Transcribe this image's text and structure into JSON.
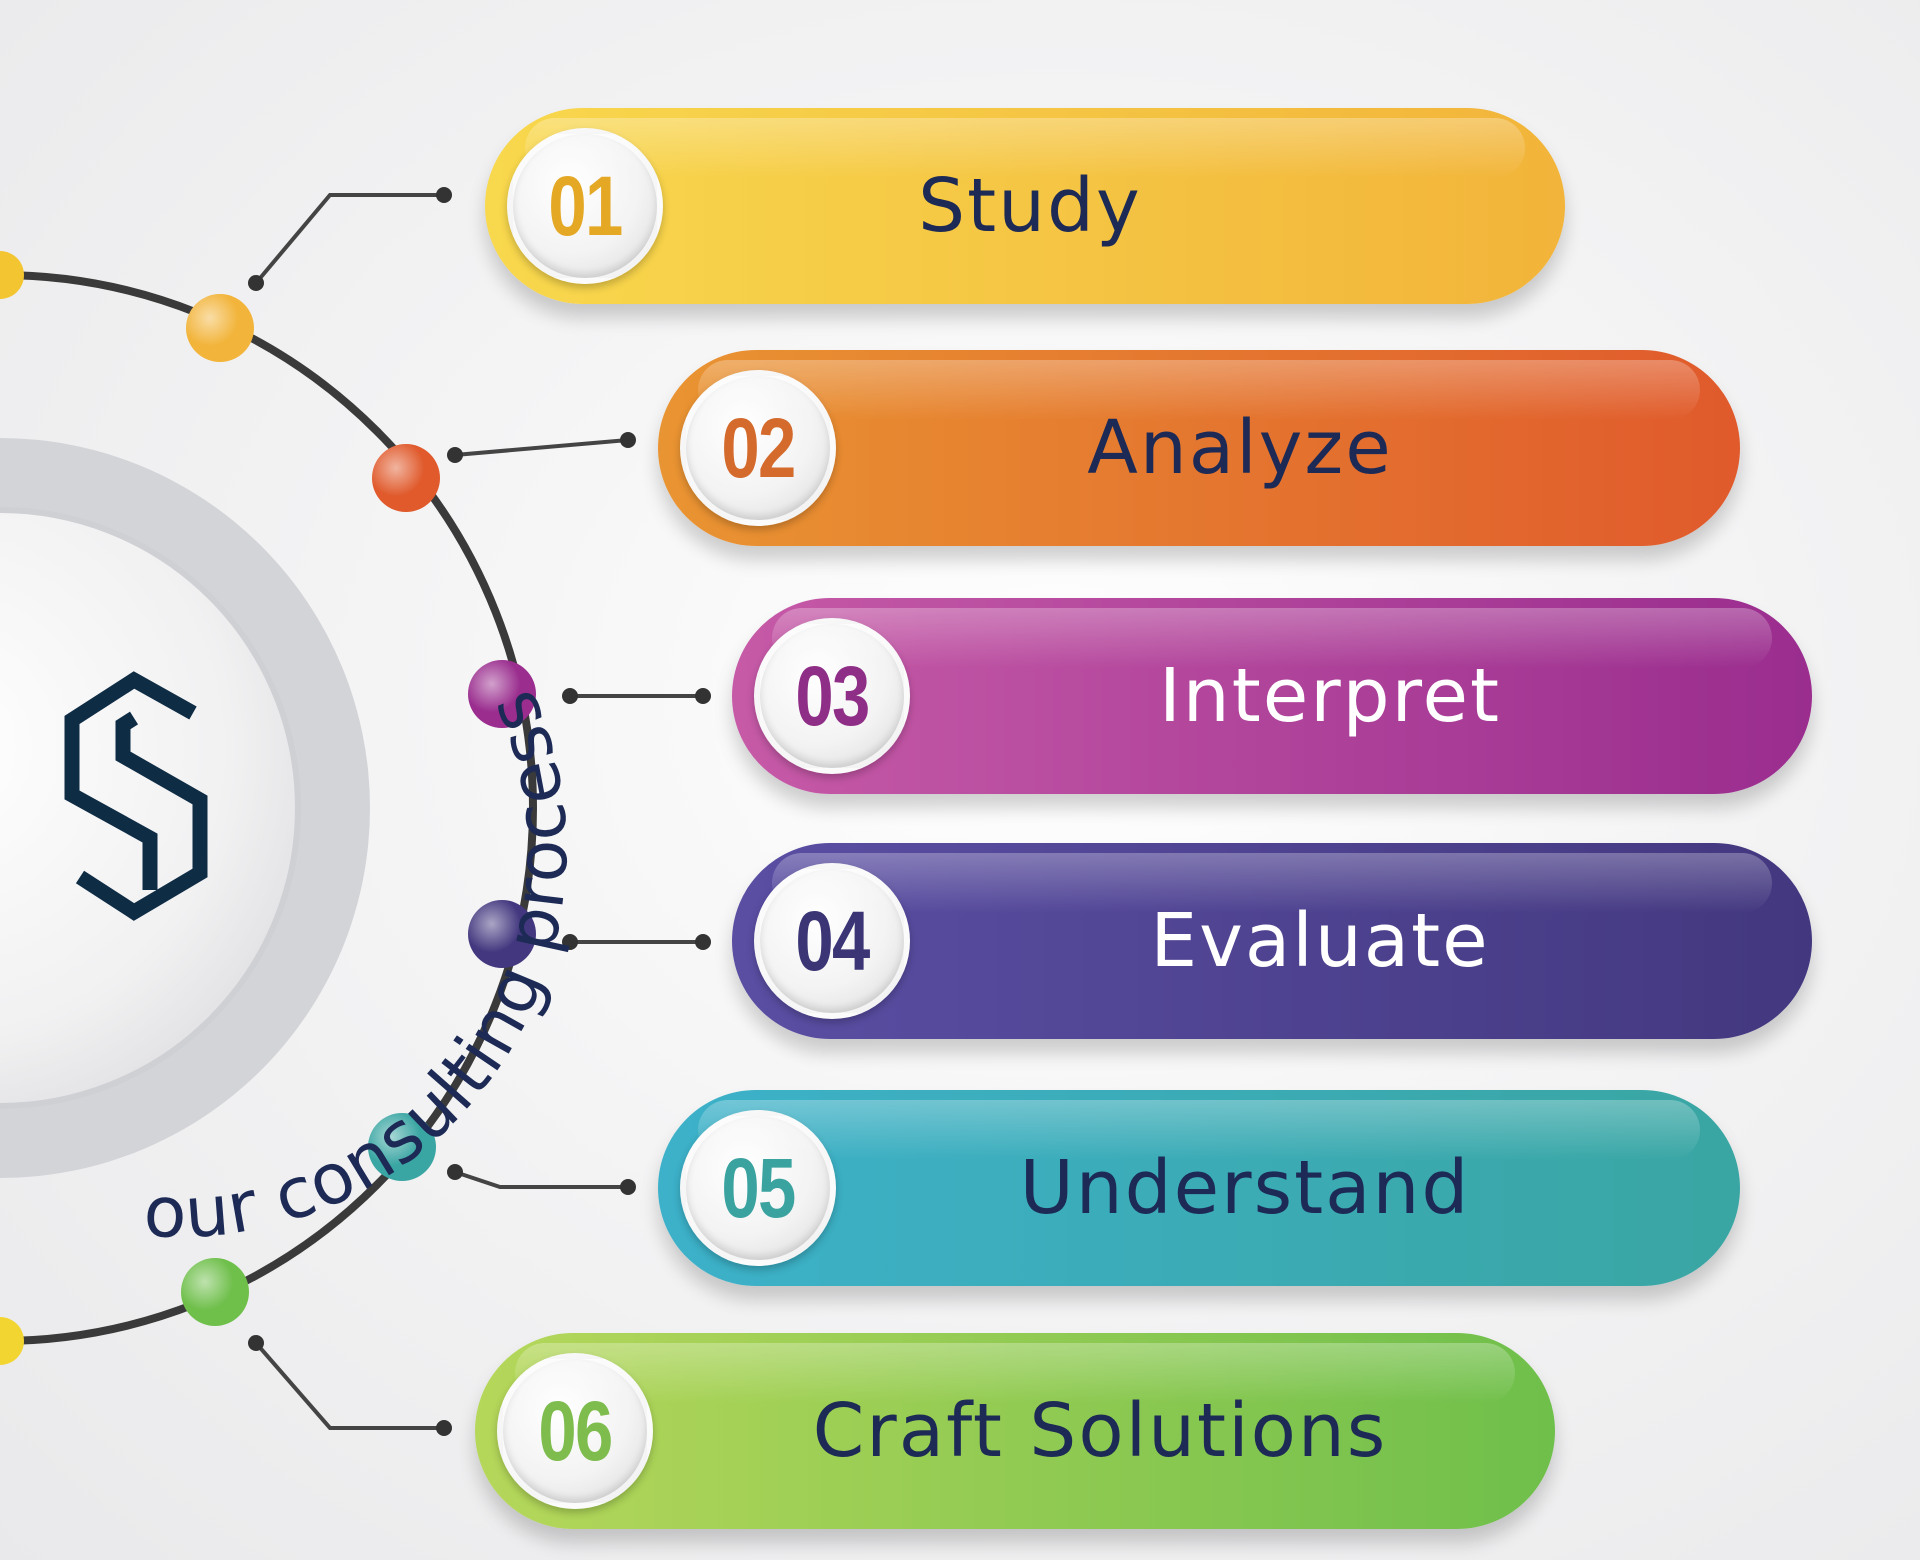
{
  "diagram": {
    "curved_title": "our consulting process",
    "steps": [
      {
        "number": "01",
        "label": "Study",
        "color_start": "#f8d84d",
        "color_end": "#f2b43a",
        "number_color": "#e4a825",
        "label_color": "#1c2a55"
      },
      {
        "number": "02",
        "label": "Analyze",
        "color_start": "#e99432",
        "color_end": "#e05a2c",
        "number_color": "#d46a2c",
        "label_color": "#1c2a55"
      },
      {
        "number": "03",
        "label": "Interpret",
        "color_start": "#c65aa7",
        "color_end": "#9a2d8e",
        "number_color": "#8f2e86",
        "label_color": "#ffffff"
      },
      {
        "number": "04",
        "label": "Evaluate",
        "color_start": "#5a4ea3",
        "color_end": "#43387f",
        "number_color": "#3b3576",
        "label_color": "#ffffff"
      },
      {
        "number": "05",
        "label": "Understand",
        "color_start": "#3cb1c9",
        "color_end": "#3aa6a3",
        "number_color": "#3aa3a0",
        "label_color": "#1c2a55"
      },
      {
        "number": "06",
        "label": "Craft Solutions",
        "color_start": "#b5d75a",
        "color_end": "#6fbf4b",
        "number_color": "#7ebc4e",
        "label_color": "#1c2a55"
      }
    ],
    "colors": {
      "logo": "#0f2c45",
      "ring": "#3a3a3a",
      "title_text": "#1c2a55"
    }
  }
}
